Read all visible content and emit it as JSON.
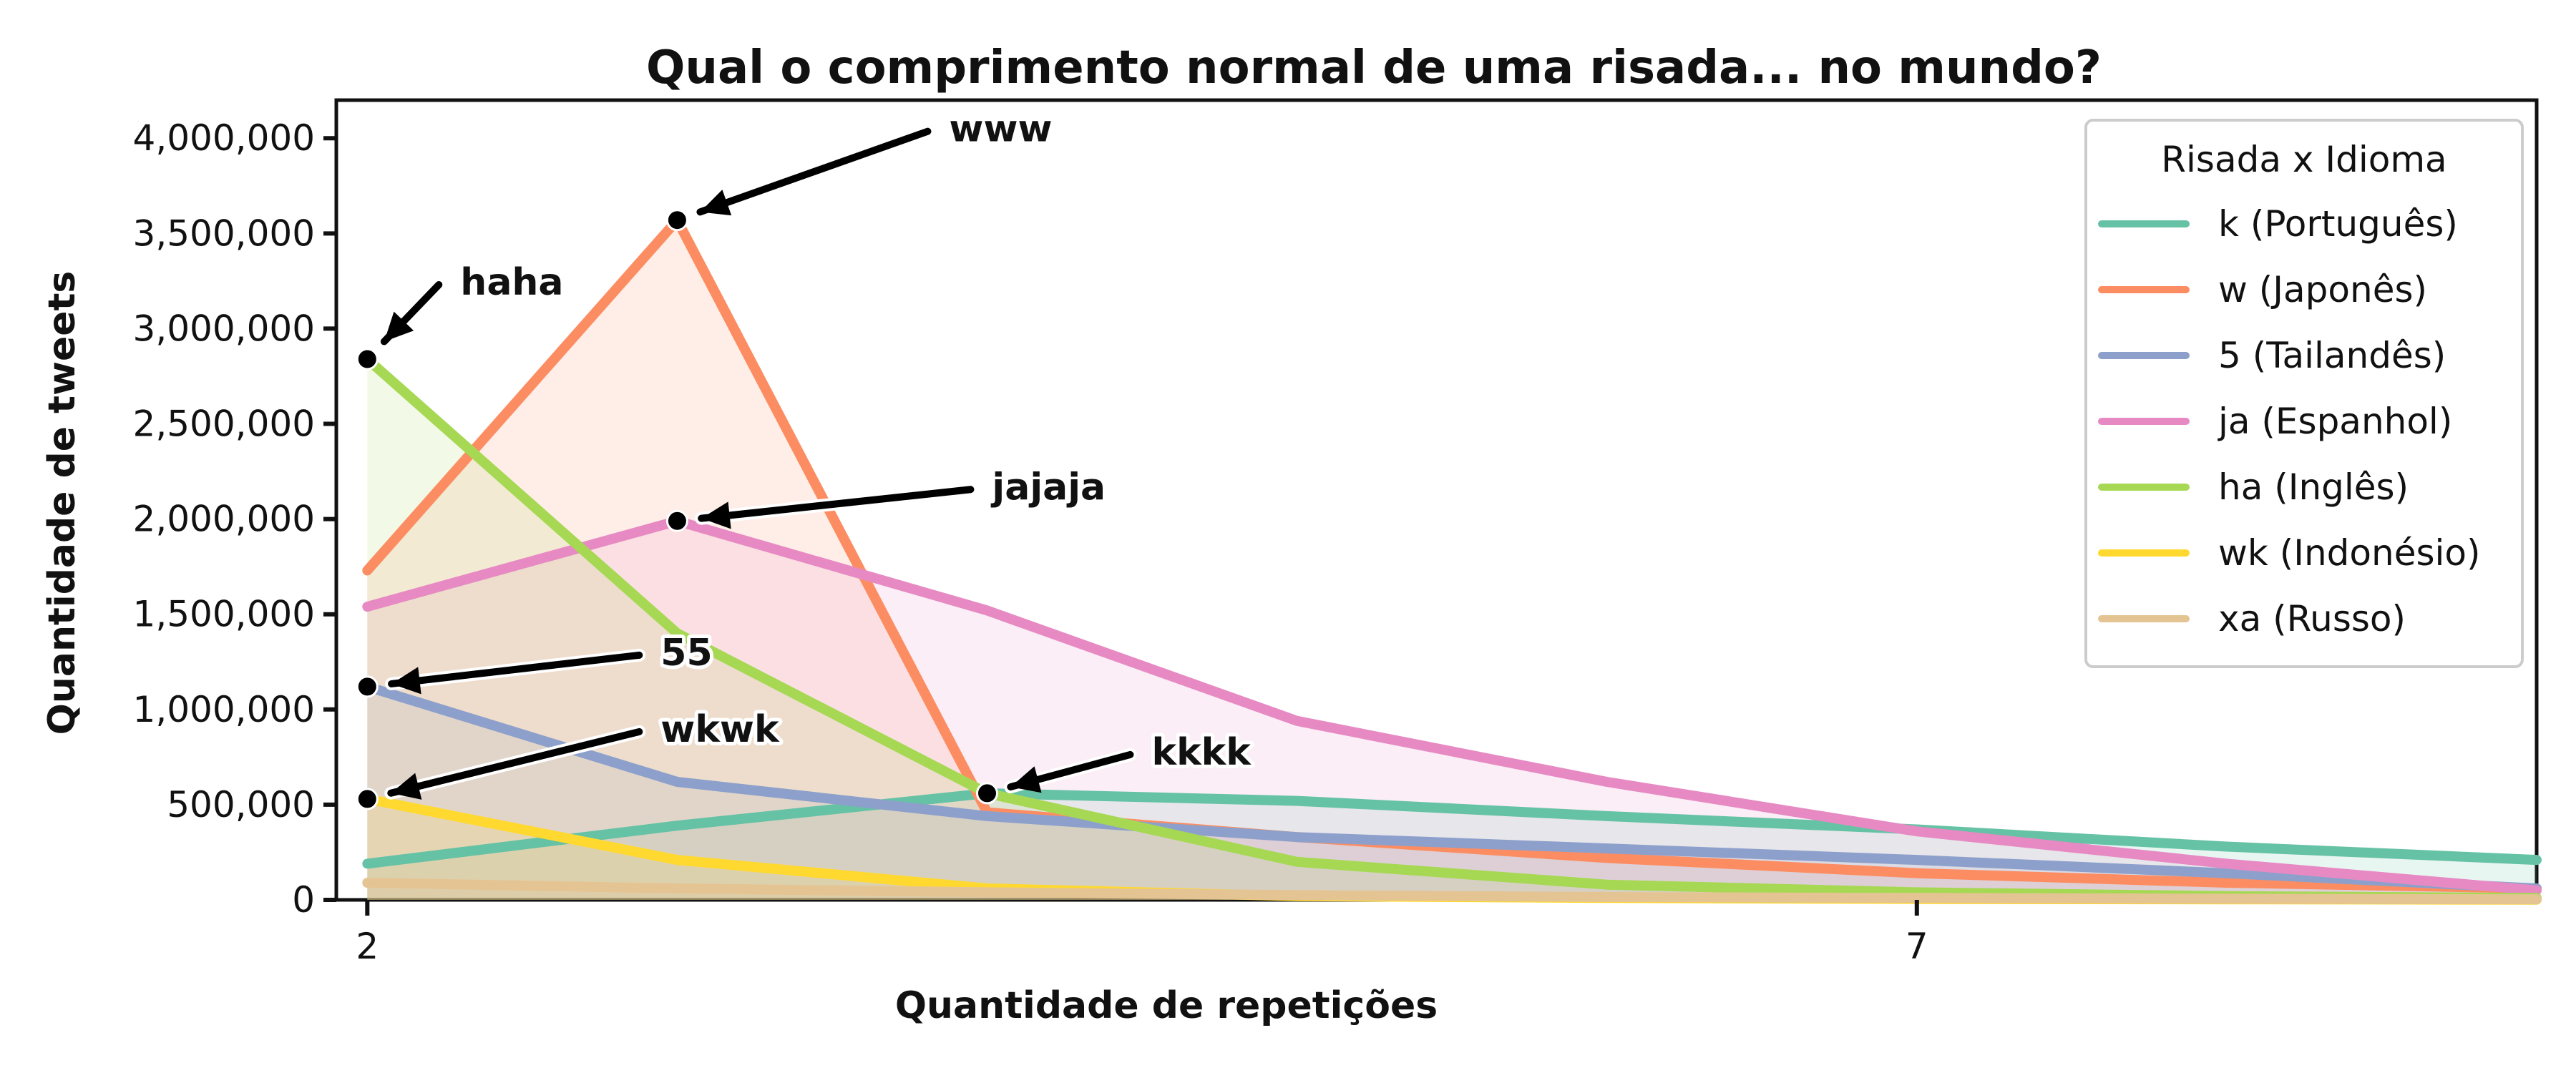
{
  "chart_data": {
    "type": "line",
    "title": "Qual o comprimento normal de uma risada... no mundo?",
    "xlabel": "Quantidade de repetições",
    "ylabel": "Quantidade de tweets",
    "x": [
      2,
      3,
      4,
      5,
      6,
      7,
      8,
      9
    ],
    "xticks": [
      2,
      7
    ],
    "xlim": [
      1.9,
      9.0
    ],
    "ylim": [
      0,
      4200000
    ],
    "yticks": [
      0,
      500000,
      1000000,
      1500000,
      2000000,
      2500000,
      3000000,
      3500000,
      4000000
    ],
    "ytick_labels": [
      "0",
      "500,000",
      "1,000,000",
      "1,500,000",
      "2,000,000",
      "2,500,000",
      "3,000,000",
      "3,500,000",
      "4,000,000"
    ],
    "xtick_labels": [
      "2",
      "7"
    ],
    "grid": false,
    "filled": true,
    "legend": {
      "title": "Risada x Idioma",
      "placement": "top-right"
    },
    "series": [
      {
        "name": "k (Português)",
        "color": "#66c2a5",
        "values": [
          190000,
          390000,
          560000,
          520000,
          440000,
          370000,
          280000,
          210000
        ]
      },
      {
        "name": "w (Japonês)",
        "color": "#fc8d62",
        "values": [
          1730000,
          3570000,
          460000,
          330000,
          220000,
          140000,
          90000,
          60000
        ]
      },
      {
        "name": "5 (Tailandês)",
        "color": "#8da0cb",
        "values": [
          1120000,
          620000,
          440000,
          330000,
          270000,
          210000,
          140000,
          60000
        ]
      },
      {
        "name": "ja (Espanhol)",
        "color": "#e78ac3",
        "values": [
          1540000,
          1990000,
          1520000,
          940000,
          620000,
          360000,
          190000,
          50000
        ]
      },
      {
        "name": "ha (Inglês)",
        "color": "#a6d854",
        "values": [
          2840000,
          1400000,
          560000,
          200000,
          80000,
          40000,
          20000,
          10000
        ]
      },
      {
        "name": "wk (Indonésio)",
        "color": "#ffd92f",
        "values": [
          530000,
          210000,
          60000,
          20000,
          10000,
          5000,
          3000,
          1000
        ]
      },
      {
        "name": "xa (Russo)",
        "color": "#e5c494",
        "values": [
          90000,
          60000,
          40000,
          25000,
          15000,
          10000,
          6000,
          3000
        ]
      }
    ],
    "annotations": [
      {
        "text": "haha",
        "x": 2,
        "y": 2840000
      },
      {
        "text": "www",
        "x": 3,
        "y": 3570000
      },
      {
        "text": "jajaja",
        "x": 3,
        "y": 1990000
      },
      {
        "text": "55",
        "x": 2,
        "y": 1120000
      },
      {
        "text": "wkwk",
        "x": 2,
        "y": 530000
      },
      {
        "text": "kkkk",
        "x": 4,
        "y": 560000
      }
    ]
  }
}
